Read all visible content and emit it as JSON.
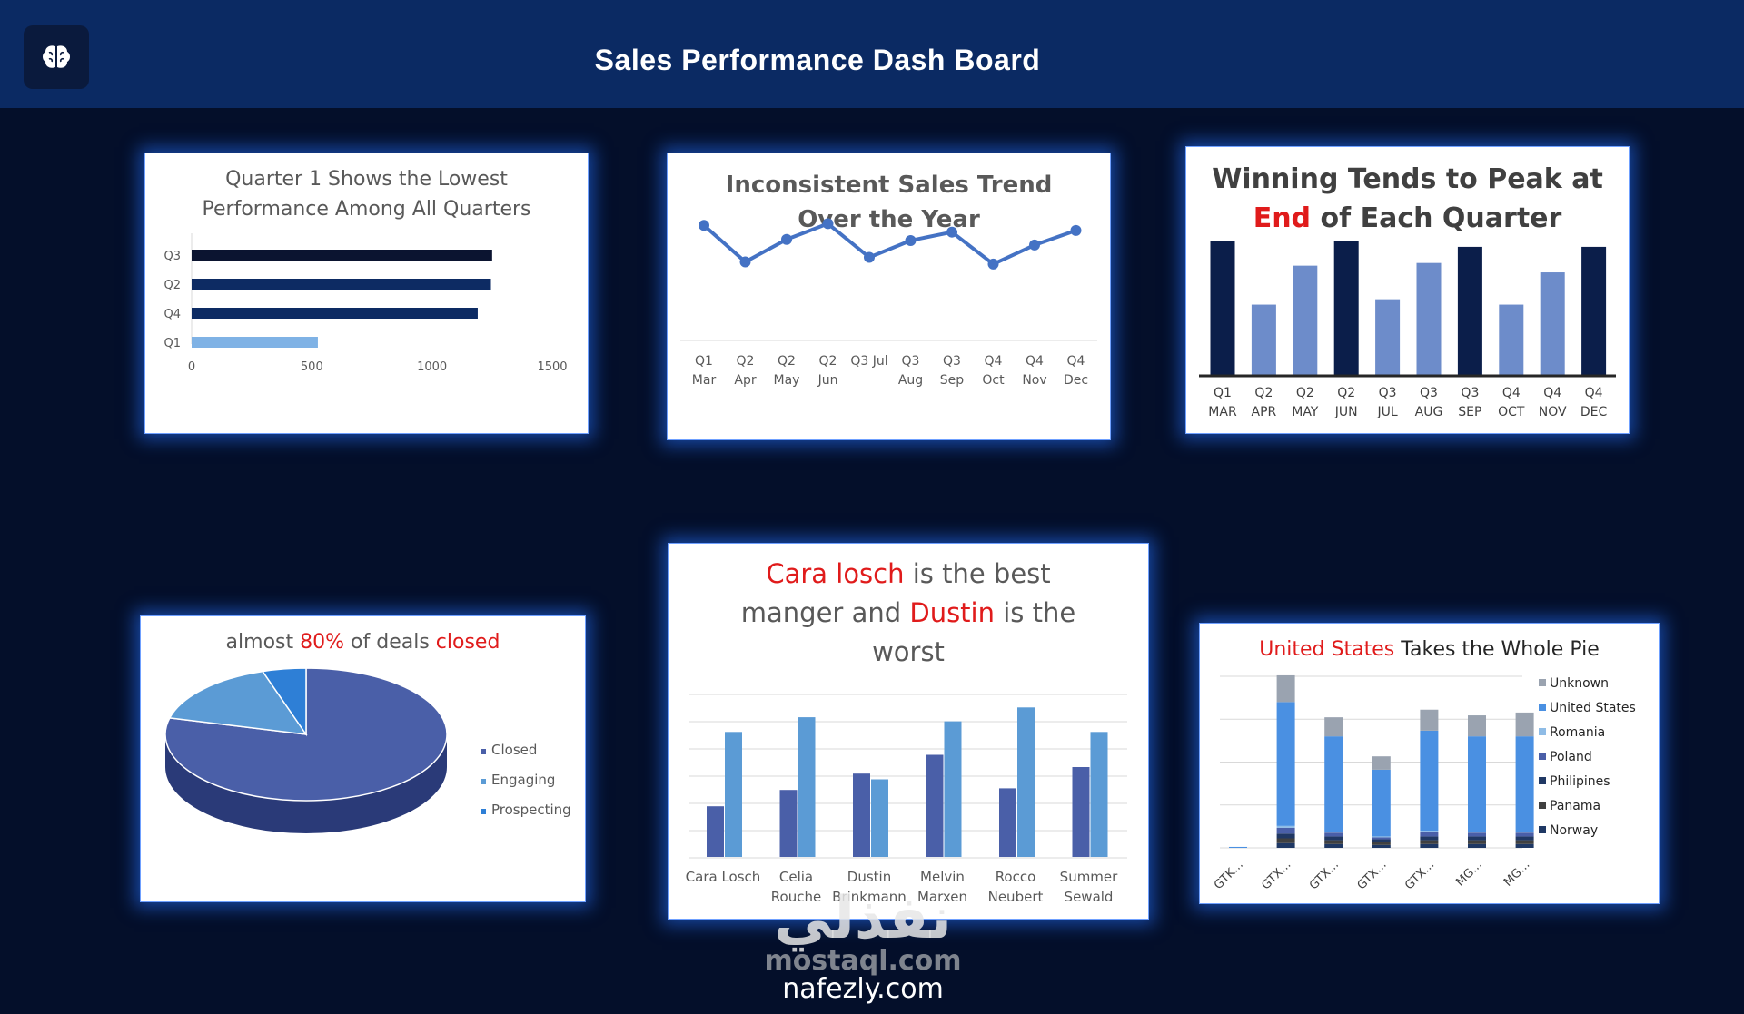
{
  "header": {
    "title": "Sales Performance Dash Board",
    "logo_icon": "brain-icon"
  },
  "watermark": {
    "arabic": "نفذلي",
    "mostaql": "mostaql.com",
    "nafezly": "nafezly.com"
  },
  "colors": {
    "header_bg": "#0b2a63",
    "page_bg": "#040f2a",
    "red": "#e01b1b",
    "navy": "#0b1e4a",
    "mid_blue": "#6d8cca",
    "light_blue": "#78aee8",
    "slate_blue": "#4a5fa8",
    "sky_blue": "#5b9bd5",
    "gray": "#9aa3b0"
  },
  "chart_data": [
    {
      "id": "quarters",
      "type": "bar",
      "orientation": "horizontal",
      "title_line1": "Quarter 1 Shows the Lowest",
      "title_line2": "Performance Among All Quarters",
      "categories": [
        "Q3",
        "Q2",
        "Q4",
        "Q1"
      ],
      "values": [
        1250,
        1245,
        1190,
        525
      ],
      "xlim": [
        0,
        1500
      ],
      "xticks": [
        "0",
        "500",
        "1000",
        "1500"
      ],
      "grid": false
    },
    {
      "id": "trend",
      "type": "line",
      "title_line1": "Inconsistent Sales Trend",
      "title_line2": "Over the Year",
      "categories": [
        {
          "top": "Q1",
          "bottom": "Mar"
        },
        {
          "top": "Q2",
          "bottom": "Apr"
        },
        {
          "top": "Q2",
          "bottom": "May"
        },
        {
          "top": "Q2",
          "bottom": "Jun"
        },
        {
          "top": "Q3 Jul",
          "bottom": ""
        },
        {
          "top": "Q3",
          "bottom": "Aug"
        },
        {
          "top": "Q3",
          "bottom": "Sep"
        },
        {
          "top": "Q4",
          "bottom": "Oct"
        },
        {
          "top": "Q4",
          "bottom": "Nov"
        },
        {
          "top": "Q4",
          "bottom": "Dec"
        }
      ],
      "values": [
        505,
        440,
        480,
        508,
        448,
        478,
        493,
        436,
        470,
        496
      ],
      "ylim": [
        300,
        520
      ]
    },
    {
      "id": "winning",
      "type": "bar",
      "title_pre": "Winning Tends to Peak at",
      "title_red": "End",
      "title_post": "of Each Quarter",
      "categories": [
        {
          "top": "Q1",
          "bottom": "MAR"
        },
        {
          "top": "Q2",
          "bottom": "APR"
        },
        {
          "top": "Q2",
          "bottom": "MAY"
        },
        {
          "top": "Q2",
          "bottom": "JUN"
        },
        {
          "top": "Q3",
          "bottom": "JUL"
        },
        {
          "top": "Q3",
          "bottom": "AUG"
        },
        {
          "top": "Q3",
          "bottom": "SEP"
        },
        {
          "top": "Q4",
          "bottom": "OCT"
        },
        {
          "top": "Q4",
          "bottom": "NOV"
        },
        {
          "top": "Q4",
          "bottom": "DEC"
        }
      ],
      "values": [
        100,
        53,
        82,
        100,
        57,
        84,
        96,
        53,
        77,
        96
      ],
      "highlight": [
        true,
        false,
        false,
        true,
        false,
        false,
        true,
        false,
        false,
        true
      ],
      "ylim": [
        0,
        100
      ]
    },
    {
      "id": "deals",
      "type": "pie",
      "title_pre": "almost",
      "title_red1": "80%",
      "title_mid": "of deals",
      "title_red2": "closed",
      "labels": [
        "Closed",
        "Engaging",
        "Prospecting"
      ],
      "values": [
        79,
        16,
        5
      ],
      "legend": "right"
    },
    {
      "id": "managers",
      "type": "bar",
      "title_red1": "Cara losch",
      "title_mid1": "is the best",
      "title_mid2": "manger and",
      "title_red2": "Dustin",
      "title_mid3": "is the",
      "title_end": "worst",
      "categories": [
        {
          "l1": "Cara Losch",
          "l2": ""
        },
        {
          "l1": "Celia",
          "l2": "Rouche"
        },
        {
          "l1": "Dustin",
          "l2": "Brinkmann"
        },
        {
          "l1": "Melvin",
          "l2": "Marxen"
        },
        {
          "l1": "Rocco",
          "l2": "Neubert"
        },
        {
          "l1": "Summer",
          "l2": "Sewald"
        }
      ],
      "series": [
        {
          "values": [
            62,
            82,
            102,
            125,
            84,
            110
          ]
        },
        {
          "values": [
            153,
            171,
            95,
            166,
            183,
            153
          ]
        }
      ],
      "ylim": [
        0,
        200
      ],
      "grid": true
    },
    {
      "id": "countries",
      "type": "bar",
      "stacked": true,
      "title_red": "United States",
      "title_post": "Takes the Whole Pie",
      "categories": [
        "GTK...",
        "GTX...",
        "GTX...",
        "GTX...",
        "GTX...",
        "MG...",
        "MG..."
      ],
      "series": [
        {
          "name": "Norway",
          "values": [
            0,
            5,
            4,
            3,
            4,
            4,
            4
          ]
        },
        {
          "name": "Panama",
          "values": [
            0,
            5,
            4,
            3,
            4,
            4,
            4
          ]
        },
        {
          "name": "Philipines",
          "values": [
            0,
            5,
            4,
            3,
            4,
            4,
            4
          ]
        },
        {
          "name": "Poland",
          "values": [
            0,
            6,
            4,
            2,
            5,
            4,
            4
          ]
        },
        {
          "name": "Romania",
          "values": [
            0,
            2,
            1,
            1,
            1,
            1,
            1
          ]
        },
        {
          "name": "United States",
          "values": [
            1,
            130,
            100,
            70,
            105,
            100,
            100
          ]
        },
        {
          "name": "Unknown",
          "values": [
            0,
            28,
            20,
            14,
            22,
            22,
            25
          ]
        }
      ],
      "legend_order": [
        "Unknown",
        "United States",
        "Romania",
        "Poland",
        "Philipines",
        "Panama",
        "Norway"
      ],
      "ylim": [
        0,
        180
      ],
      "grid": true
    }
  ]
}
